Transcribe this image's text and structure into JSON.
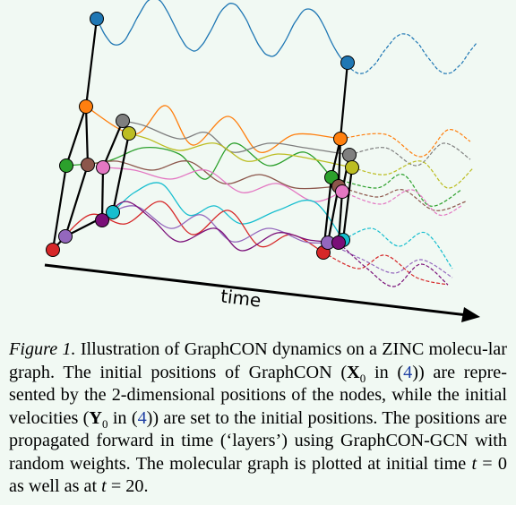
{
  "figure": {
    "axis_label": "time",
    "colors": {
      "blue": "#1f77b4",
      "orange": "#ff7f0e",
      "green": "#2ca02c",
      "brown": "#8c564b",
      "pink": "#e377c2",
      "gray": "#7f7f7f",
      "olive": "#bcbd22",
      "cyan": "#17becf",
      "red": "#d62728",
      "purple": "#9467bd",
      "darkpurple": "#7a0f78",
      "edge": "#000000",
      "axis": "#000000"
    },
    "node_names": [
      "blue",
      "orange",
      "green",
      "brown",
      "pink",
      "gray",
      "olive",
      "cyan",
      "red",
      "purple",
      "darkpurple"
    ],
    "edges": [
      [
        "blue",
        "orange"
      ],
      [
        "orange",
        "green"
      ],
      [
        "orange",
        "brown"
      ],
      [
        "green",
        "red"
      ],
      [
        "brown",
        "purple"
      ],
      [
        "gray",
        "olive"
      ],
      [
        "gray",
        "pink"
      ],
      [
        "olive",
        "cyan"
      ],
      [
        "pink",
        "darkpurple"
      ],
      [
        "red",
        "purple"
      ],
      [
        "purple",
        "cyan"
      ]
    ]
  },
  "caption": {
    "label": "Figure 1.",
    "part1": " Illustration of GraphCON dynamics on a ZINC molecu-lar graph. The initial positions of GraphCON (",
    "sym_X": "X",
    "sub0a": "0",
    "in_a": " in (",
    "ref_a": "4",
    "part2": ")) are repre-sented by the 2-dimensional positions of the nodes, while the initial velocities (",
    "sym_Y": "Y",
    "sub0b": "0",
    "in_b": " in (",
    "ref_b": "4",
    "part3": ")) are set to the initial positions. The positions are propagated forward in time (‘layers’) using GraphCON-GCN with random weights. The molecular graph is plotted at initial time ",
    "t_var_a": "t",
    "eq_a": " = 0",
    "mid": " as well as at ",
    "t_var_b": "t",
    "eq_b": " = 20",
    "end": "."
  }
}
